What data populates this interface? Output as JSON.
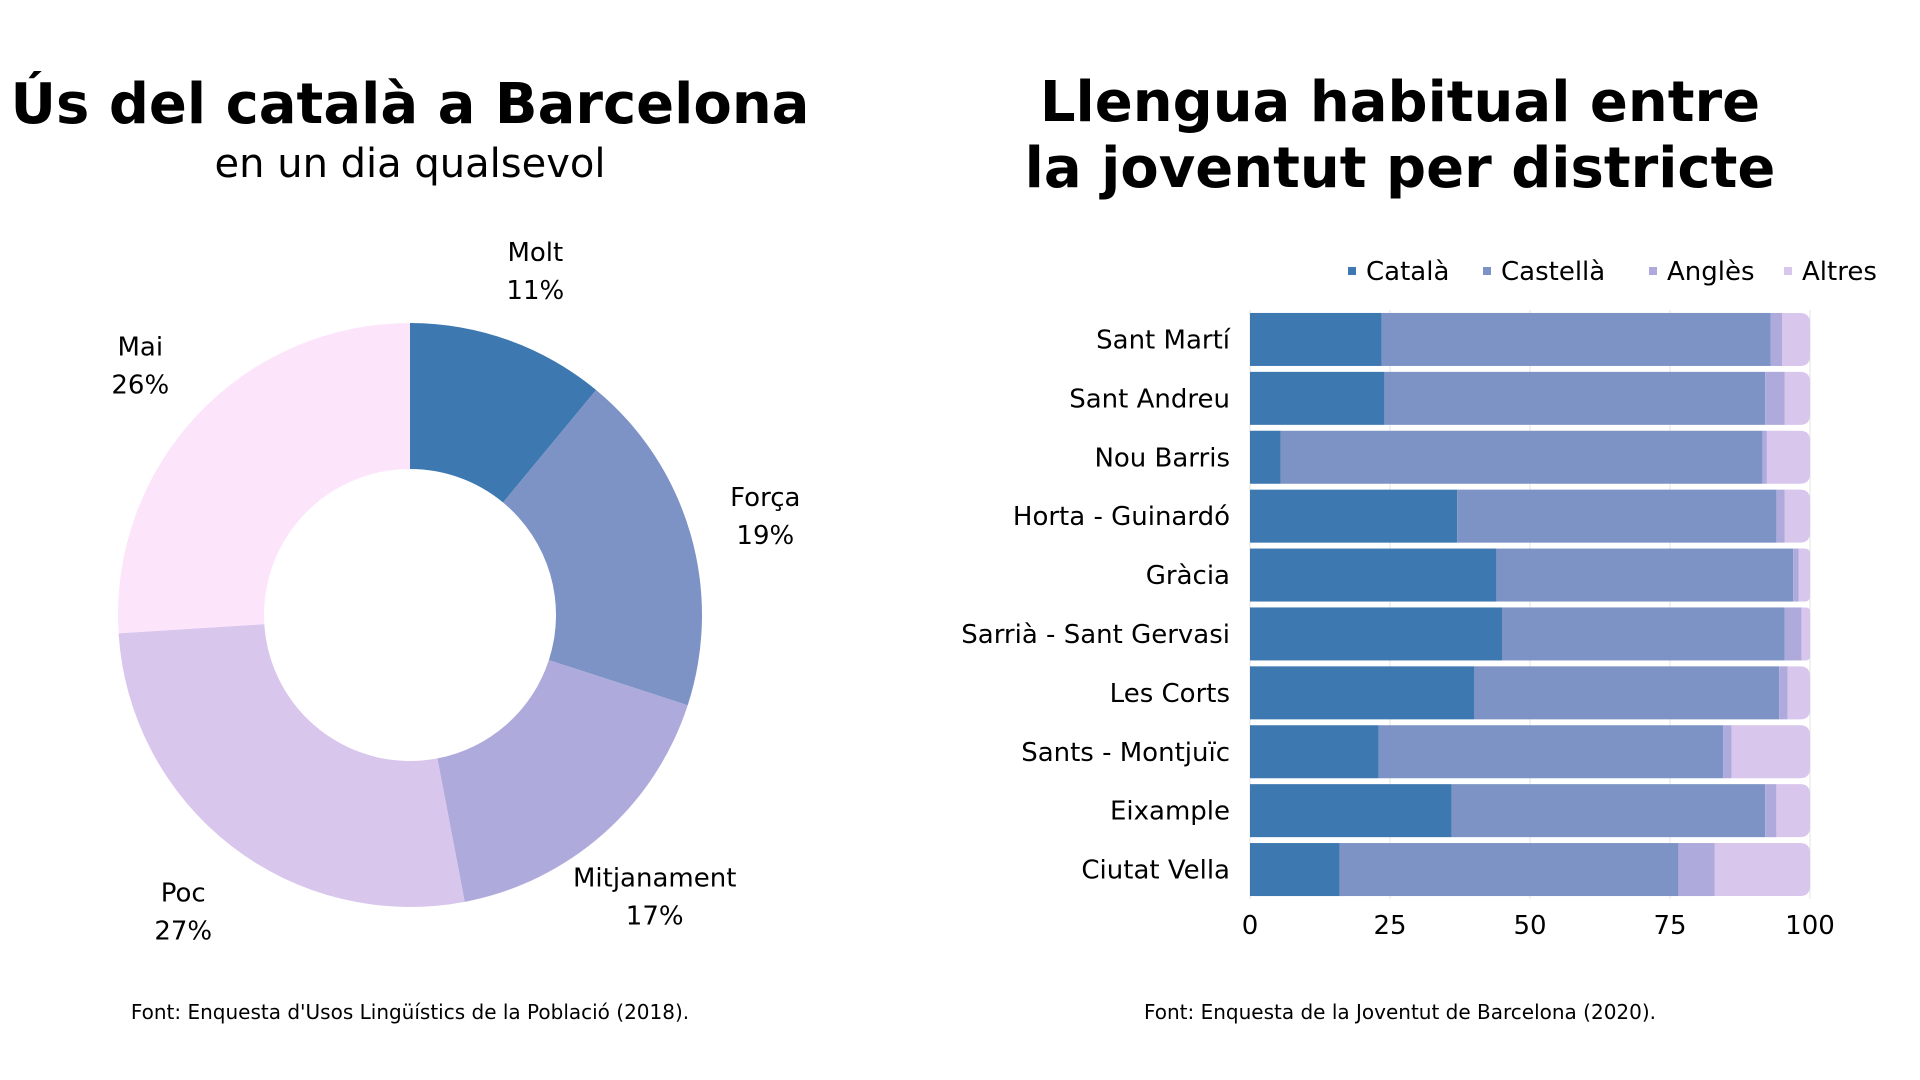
{
  "left": {
    "title": "Ús del català a Barcelona",
    "subtitle": "en un dia qualsevol",
    "source": "Font: Enquesta d'Usos Lingüístics de la Població (2018)."
  },
  "right": {
    "title_line1": "Llengua habitual entre",
    "title_line2": "la joventut per districte",
    "source": "Font: Enquesta de la Joventut de Barcelona (2020)."
  },
  "chart_data": [
    {
      "type": "pie",
      "title": "Ús del català a Barcelona",
      "subtitle": "en un dia qualsevol",
      "donut": true,
      "slices": [
        {
          "label": "Molt",
          "value": 11,
          "value_label": "11%",
          "color": "#3d79b0"
        },
        {
          "label": "Força",
          "value": 19,
          "value_label": "19%",
          "color": "#7d92c5"
        },
        {
          "label": "Mitjanament",
          "value": 17,
          "value_label": "17%",
          "color": "#aeaadb"
        },
        {
          "label": "Poc",
          "value": 27,
          "value_label": "27%",
          "color": "#d9c6ec"
        },
        {
          "label": "Mai",
          "value": 26,
          "value_label": "26%",
          "color": "#fce4fb"
        }
      ]
    },
    {
      "type": "bar",
      "orientation": "horizontal",
      "stacked": true,
      "title": "Llengua habitual entre la joventut per districte",
      "legend_position": "top-right",
      "categories": [
        "Sant Martí",
        "Sant Andreu",
        "Nou Barris",
        "Horta - Guinardó",
        "Gràcia",
        "Sarrià - Sant Gervasi",
        "Les Corts",
        "Sants - Montjuïc",
        "Eixample",
        "Ciutat Vella"
      ],
      "series": [
        {
          "name": "Català",
          "color": "#3d79b0",
          "values": [
            23.5,
            24,
            5.5,
            37,
            44,
            45,
            40,
            23,
            36,
            16
          ]
        },
        {
          "name": "Castellà",
          "color": "#7d92c5",
          "values": [
            69.5,
            68,
            86,
            57,
            53,
            50.5,
            54.5,
            61.5,
            56,
            60.5
          ]
        },
        {
          "name": "Anglès",
          "color": "#aeaadb",
          "values": [
            2,
            3.5,
            0.8,
            1.5,
            1,
            3,
            1.5,
            1.5,
            2,
            6.5
          ]
        },
        {
          "name": "Altres",
          "color": "#d9c6ec",
          "values": [
            5,
            4.5,
            7.7,
            4.5,
            2,
            1.5,
            4,
            14,
            6,
            17
          ]
        }
      ],
      "xlim": [
        0,
        100
      ],
      "xticks": [
        "0",
        "25",
        "50",
        "75",
        "100"
      ],
      "grid": true
    }
  ]
}
